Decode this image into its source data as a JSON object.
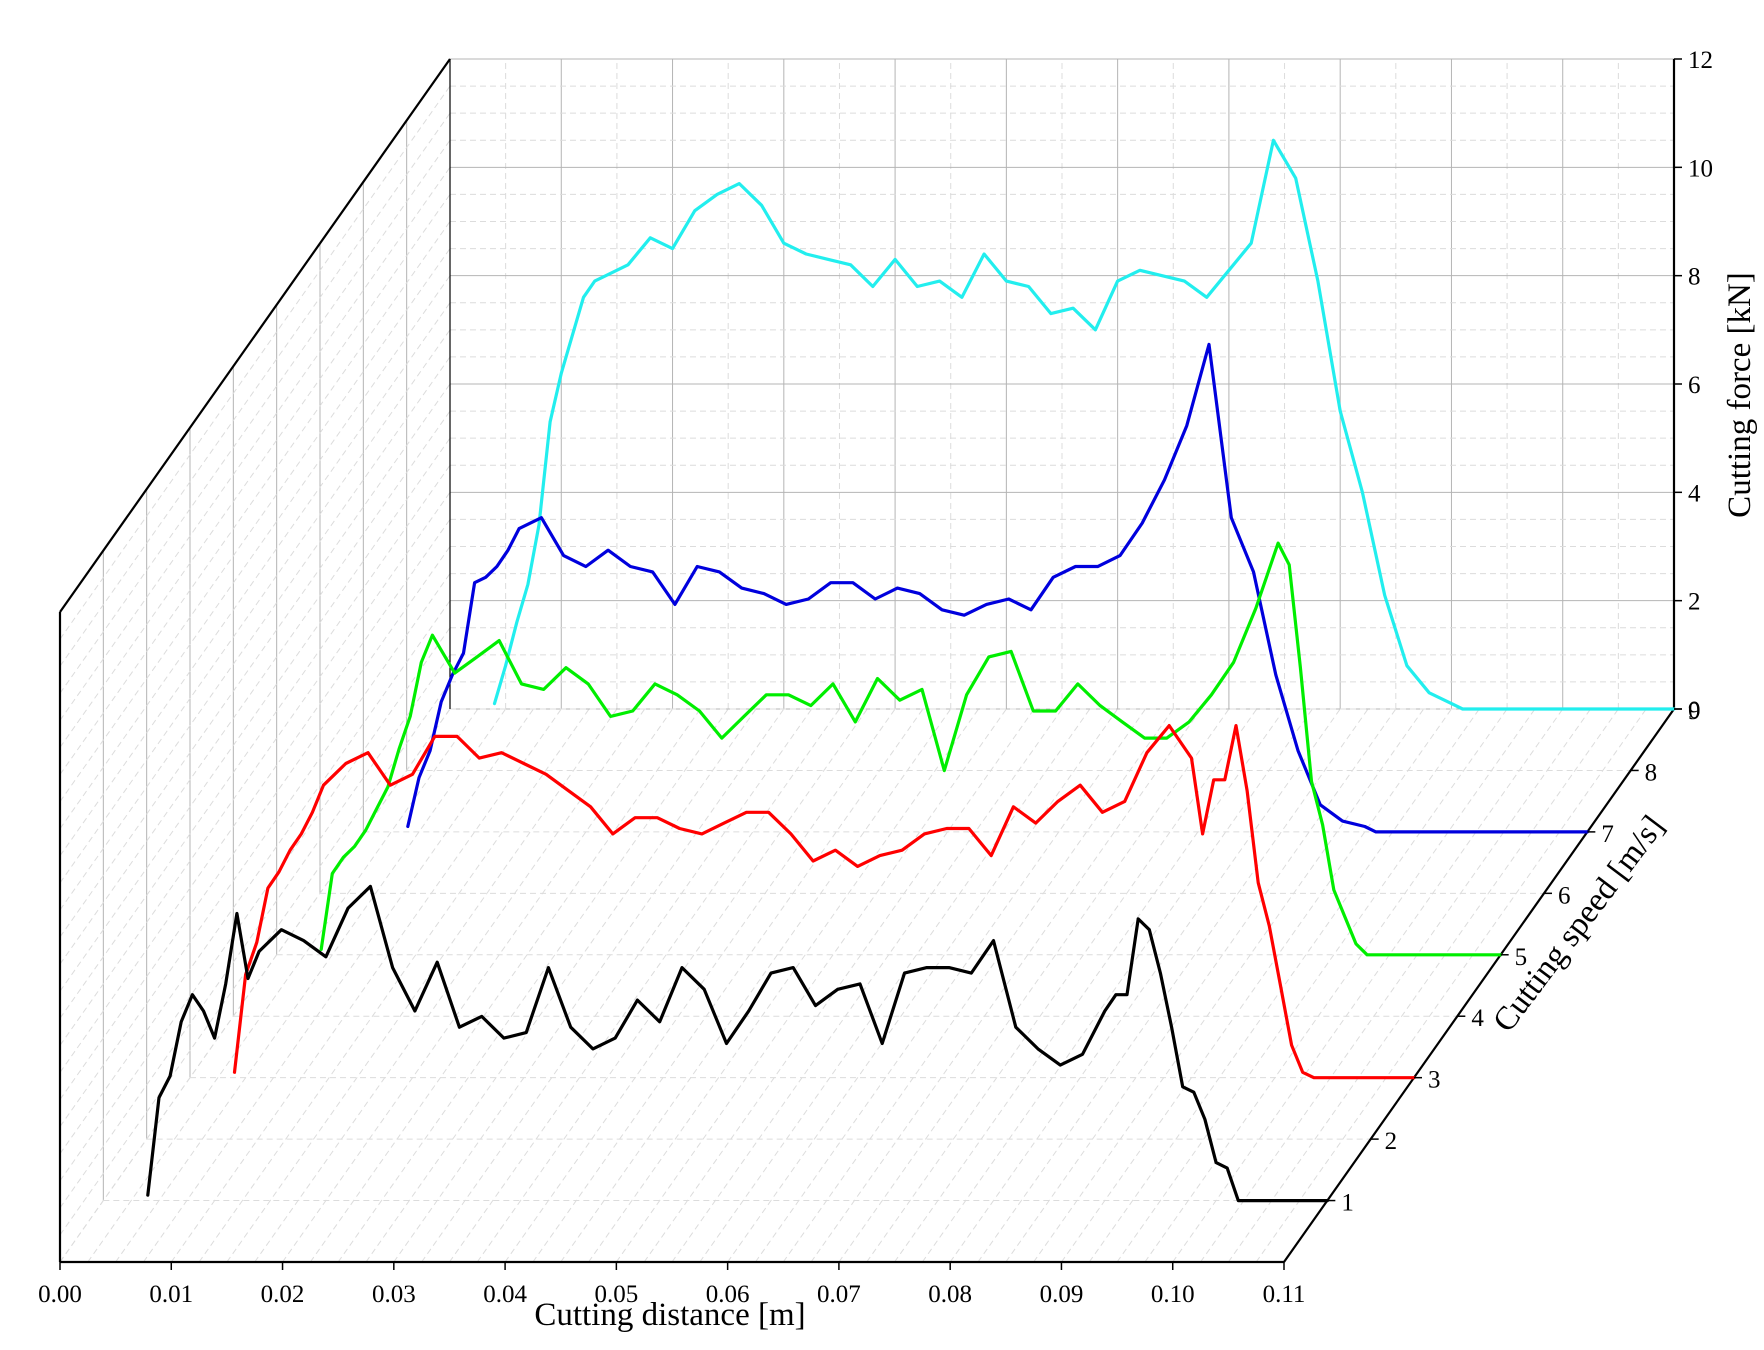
{
  "chart_data": {
    "type": "line",
    "subtype": "3d-waterfall",
    "title": "",
    "xlabel": "Cutting distance [m]",
    "ylabel": "Cutting force [kN]",
    "zlabel": "Cutting speed [m/s]",
    "xlim": [
      0,
      0.11
    ],
    "ylim": [
      0,
      12
    ],
    "zlim": [
      0,
      9
    ],
    "x_ticks": [
      "0.00",
      "0.01",
      "0.02",
      "0.03",
      "0.04",
      "0.05",
      "0.06",
      "0.07",
      "0.08",
      "0.09",
      "0.10",
      "0.11"
    ],
    "y_ticks": [
      "0",
      "2",
      "4",
      "6",
      "8",
      "10",
      "12"
    ],
    "z_ticks": [
      "1",
      "2",
      "3",
      "4",
      "5",
      "6",
      "7",
      "8",
      "9"
    ],
    "grid": true,
    "colors": {
      "speed_1": "#000000",
      "speed_3": "#ff0000",
      "speed_5": "#00ee00",
      "speed_7": "#0000dd",
      "speed_9": "#22eeee",
      "grid": "#b4b4b4",
      "grid_minor": "#dcdcdc"
    },
    "series": [
      {
        "speed": 1,
        "color": "#000000",
        "x": [
          0.004,
          0.005,
          0.006,
          0.007,
          0.008,
          0.009,
          0.01,
          0.011,
          0.012,
          0.013,
          0.014,
          0.016,
          0.018,
          0.02,
          0.022,
          0.024,
          0.026,
          0.028,
          0.03,
          0.032,
          0.034,
          0.036,
          0.038,
          0.04,
          0.042,
          0.044,
          0.046,
          0.048,
          0.05,
          0.052,
          0.054,
          0.056,
          0.058,
          0.06,
          0.062,
          0.064,
          0.066,
          0.068,
          0.07,
          0.072,
          0.074,
          0.076,
          0.078,
          0.08,
          0.082,
          0.084,
          0.086,
          0.088,
          0.09,
          0.091,
          0.092,
          0.093,
          0.094,
          0.095,
          0.096,
          0.097,
          0.098,
          0.099,
          0.1,
          0.101,
          0.102,
          0.103
        ],
        "y": [
          0.1,
          1.9,
          2.3,
          3.3,
          3.8,
          3.5,
          3.0,
          4.0,
          5.3,
          4.1,
          4.6,
          5.0,
          4.8,
          4.5,
          5.4,
          5.8,
          4.3,
          3.5,
          4.4,
          3.2,
          3.4,
          3.0,
          3.1,
          4.3,
          3.2,
          2.8,
          3.0,
          3.7,
          3.3,
          4.3,
          3.9,
          2.9,
          3.5,
          4.2,
          4.3,
          3.6,
          3.9,
          4.0,
          2.9,
          4.2,
          4.3,
          4.3,
          4.2,
          4.8,
          3.2,
          2.8,
          2.5,
          2.7,
          3.5,
          3.8,
          3.8,
          5.2,
          5.0,
          4.2,
          3.2,
          2.1,
          2.0,
          1.5,
          0.7,
          0.6,
          0.0,
          0.0
        ]
      },
      {
        "speed": 3,
        "color": "#ff0000",
        "x": [
          0.004,
          0.005,
          0.006,
          0.007,
          0.008,
          0.009,
          0.01,
          0.011,
          0.012,
          0.013,
          0.014,
          0.016,
          0.018,
          0.02,
          0.022,
          0.024,
          0.026,
          0.028,
          0.03,
          0.032,
          0.034,
          0.036,
          0.038,
          0.04,
          0.042,
          0.044,
          0.046,
          0.048,
          0.05,
          0.052,
          0.054,
          0.056,
          0.058,
          0.06,
          0.062,
          0.064,
          0.066,
          0.068,
          0.07,
          0.072,
          0.074,
          0.076,
          0.078,
          0.08,
          0.082,
          0.084,
          0.086,
          0.088,
          0.09,
          0.091,
          0.092,
          0.093,
          0.094,
          0.095,
          0.096,
          0.097,
          0.098,
          0.099,
          0.1,
          0.101,
          0.102
        ],
        "y": [
          0.1,
          1.9,
          2.5,
          3.5,
          3.8,
          4.2,
          4.5,
          4.9,
          5.4,
          5.6,
          5.8,
          6.0,
          5.4,
          5.6,
          6.3,
          6.3,
          5.9,
          6.0,
          5.8,
          5.6,
          5.3,
          5.0,
          4.5,
          4.8,
          4.8,
          4.6,
          4.5,
          4.7,
          4.9,
          4.9,
          4.5,
          4.0,
          4.2,
          3.9,
          4.1,
          4.2,
          4.5,
          4.6,
          4.6,
          4.1,
          5.0,
          4.7,
          5.1,
          5.4,
          4.9,
          5.1,
          6.0,
          6.5,
          5.9,
          4.5,
          5.5,
          5.5,
          6.5,
          5.3,
          3.6,
          2.8,
          1.7,
          0.6,
          0.1,
          0.0,
          0.0
        ]
      },
      {
        "speed": 5,
        "color": "#00ee00",
        "x": [
          0.004,
          0.005,
          0.006,
          0.007,
          0.008,
          0.009,
          0.01,
          0.011,
          0.012,
          0.013,
          0.014,
          0.016,
          0.018,
          0.02,
          0.022,
          0.024,
          0.026,
          0.028,
          0.03,
          0.032,
          0.034,
          0.036,
          0.038,
          0.04,
          0.042,
          0.044,
          0.046,
          0.048,
          0.05,
          0.052,
          0.054,
          0.056,
          0.058,
          0.06,
          0.062,
          0.064,
          0.066,
          0.068,
          0.07,
          0.072,
          0.074,
          0.076,
          0.078,
          0.08,
          0.082,
          0.084,
          0.086,
          0.088,
          0.09,
          0.091,
          0.092,
          0.093,
          0.094,
          0.095,
          0.096,
          0.097,
          0.098,
          0.099,
          0.1,
          0.101,
          0.102
        ],
        "y": [
          0.1,
          1.5,
          1.8,
          2.0,
          2.3,
          2.7,
          3.1,
          3.8,
          4.4,
          5.4,
          5.9,
          5.2,
          5.5,
          5.8,
          5.0,
          4.9,
          5.3,
          5.0,
          4.4,
          4.5,
          5.0,
          4.8,
          4.5,
          4.0,
          4.4,
          4.8,
          4.8,
          4.6,
          5.0,
          4.3,
          5.1,
          4.7,
          4.9,
          3.4,
          4.8,
          5.5,
          5.6,
          4.5,
          4.5,
          5.0,
          4.6,
          4.3,
          4.0,
          4.0,
          4.3,
          4.8,
          5.4,
          6.4,
          7.6,
          7.2,
          5.3,
          3.2,
          2.4,
          1.2,
          0.7,
          0.2,
          0.0,
          0.0,
          0.0,
          0.0,
          0.0
        ]
      },
      {
        "speed": 7,
        "color": "#0000dd",
        "x": [
          0.004,
          0.005,
          0.006,
          0.007,
          0.008,
          0.009,
          0.01,
          0.011,
          0.012,
          0.013,
          0.014,
          0.016,
          0.018,
          0.02,
          0.022,
          0.024,
          0.026,
          0.028,
          0.03,
          0.032,
          0.034,
          0.036,
          0.038,
          0.04,
          0.042,
          0.044,
          0.046,
          0.048,
          0.05,
          0.052,
          0.054,
          0.056,
          0.058,
          0.06,
          0.062,
          0.064,
          0.066,
          0.068,
          0.07,
          0.072,
          0.074,
          0.076,
          0.078,
          0.08,
          0.082,
          0.084,
          0.086,
          0.088,
          0.09,
          0.091,
          0.092,
          0.093,
          0.094,
          0.095,
          0.096,
          0.097,
          0.098,
          0.099,
          0.1,
          0.101,
          0.102
        ],
        "y": [
          0.1,
          1.0,
          1.5,
          2.4,
          2.9,
          3.3,
          4.6,
          4.7,
          4.9,
          5.2,
          5.6,
          5.8,
          5.1,
          4.9,
          5.2,
          4.9,
          4.8,
          4.2,
          4.9,
          4.8,
          4.5,
          4.4,
          4.2,
          4.3,
          4.6,
          4.6,
          4.3,
          4.5,
          4.4,
          4.1,
          4.0,
          4.2,
          4.3,
          4.1,
          4.7,
          4.9,
          4.9,
          5.1,
          5.7,
          6.5,
          7.5,
          9.0,
          5.8,
          4.8,
          2.9,
          1.5,
          0.5,
          0.2,
          0.1,
          0.0,
          0.0,
          0.0,
          0.0,
          0.0,
          0.0,
          0.0,
          0.0,
          0.0,
          0.0,
          0.0,
          0.0
        ]
      },
      {
        "speed": 9,
        "color": "#22eeee",
        "x": [
          0.004,
          0.005,
          0.006,
          0.007,
          0.008,
          0.009,
          0.01,
          0.011,
          0.012,
          0.013,
          0.014,
          0.016,
          0.018,
          0.02,
          0.022,
          0.024,
          0.026,
          0.028,
          0.03,
          0.032,
          0.034,
          0.036,
          0.038,
          0.04,
          0.042,
          0.044,
          0.046,
          0.048,
          0.05,
          0.052,
          0.054,
          0.056,
          0.058,
          0.06,
          0.062,
          0.064,
          0.066,
          0.068,
          0.07,
          0.072,
          0.074,
          0.076,
          0.078,
          0.08,
          0.082,
          0.084,
          0.086,
          0.088,
          0.09,
          0.091,
          0.092,
          0.093,
          0.094,
          0.095,
          0.096,
          0.097,
          0.098,
          0.099,
          0.1,
          0.101,
          0.102
        ],
        "y": [
          0.1,
          0.8,
          1.6,
          2.3,
          3.4,
          5.3,
          6.2,
          6.9,
          7.6,
          7.9,
          8.0,
          8.2,
          8.7,
          8.5,
          9.2,
          9.5,
          9.7,
          9.3,
          8.6,
          8.4,
          8.3,
          8.2,
          7.8,
          8.3,
          7.8,
          7.9,
          7.6,
          8.4,
          7.9,
          7.8,
          7.3,
          7.4,
          7.0,
          7.9,
          8.1,
          8.0,
          7.9,
          7.6,
          8.1,
          8.6,
          10.5,
          9.8,
          7.9,
          5.5,
          4.0,
          2.1,
          0.8,
          0.3,
          0.1,
          0.0,
          0.0,
          0.0,
          0.0,
          0.0,
          0.0,
          0.0,
          0.0,
          0.0,
          0.0,
          0.0,
          0.0
        ]
      }
    ]
  }
}
